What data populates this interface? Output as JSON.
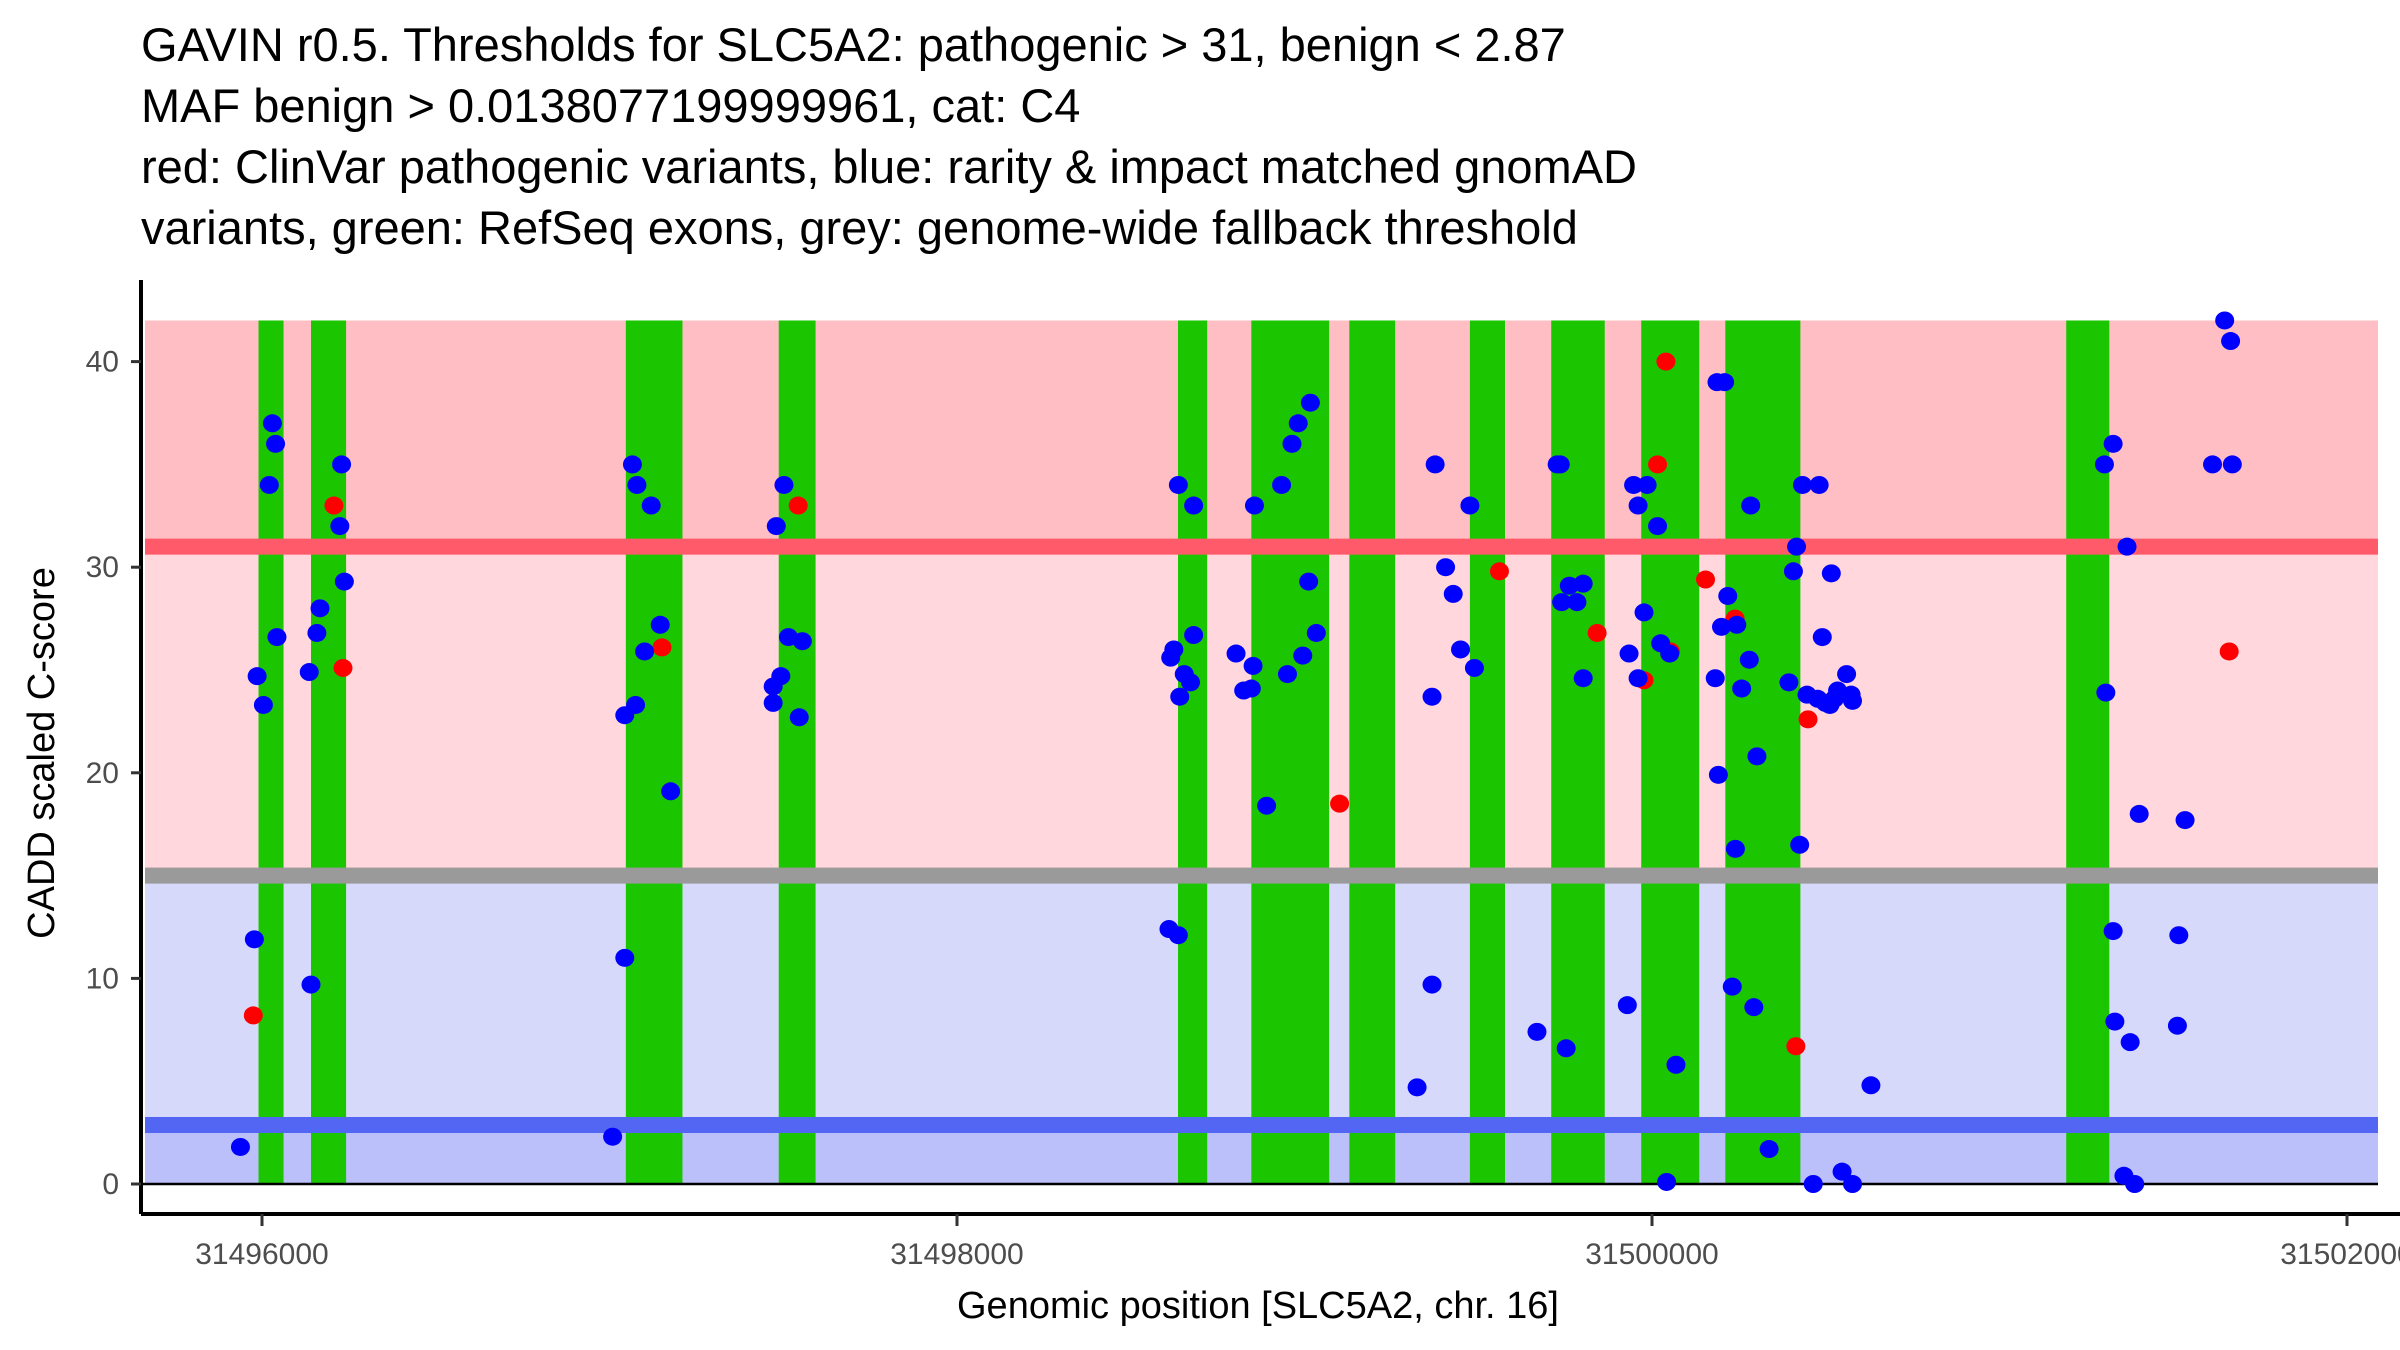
{
  "title_lines": [
    "GAVIN r0.5. Thresholds for SLC5A2: pathogenic > 31, benign < 2.87",
    "MAF benign > 0.0138077199999961, cat: C4",
    "red: ClinVar pathogenic variants, blue: rarity & impact matched gnomAD",
    "variants, green: RefSeq exons, grey: genome-wide fallback threshold"
  ],
  "chart_data": {
    "type": "scatter",
    "title": "GAVIN r0.5. Thresholds for SLC5A2: pathogenic > 31, benign < 2.87 / MAF benign > 0.0138077199999961, cat: C4",
    "xlabel": "Genomic position [SLC5A2, chr. 16]",
    "ylabel": "CADD scaled C-score",
    "xlim": [
      31495720,
      31502000
    ],
    "ylim": [
      -2,
      44
    ],
    "x_ticks": [
      31496000,
      31498000,
      31500000,
      31502000
    ],
    "x_tick_labels": [
      "31496000",
      "31498000",
      "31500000",
      "31502000"
    ],
    "y_ticks": [
      0,
      10,
      20,
      30,
      40
    ],
    "y_tick_labels": [
      "0",
      "10",
      "20",
      "30",
      "40"
    ],
    "grid": false,
    "thresholds": {
      "pathogenic": 31,
      "benign": 2.87,
      "genome_wide_fallback": 15
    },
    "bands": [
      {
        "name": "pathogenic-zone",
        "from": 31,
        "to": 42,
        "color": "#ffbec3"
      },
      {
        "name": "vus-upper-zone",
        "from": 15,
        "to": 31,
        "color": "#ffd7dc"
      },
      {
        "name": "vus-lower-zone",
        "from": 2.87,
        "to": 15,
        "color": "#d7d9fb"
      },
      {
        "name": "benign-zone",
        "from": 0,
        "to": 2.87,
        "color": "#bbbffa"
      }
    ],
    "lines": [
      {
        "name": "pathogenic-threshold",
        "y": 31,
        "color": "#ff5a69"
      },
      {
        "name": "fallback-threshold",
        "y": 15,
        "color": "#9a9a9a"
      },
      {
        "name": "benign-threshold",
        "y": 2.87,
        "color": "#5266f3"
      }
    ],
    "exons": [
      [
        31495990,
        31496062
      ],
      [
        31496141,
        31496242
      ],
      [
        31497047,
        31497210
      ],
      [
        31497487,
        31497593
      ],
      [
        31498636,
        31498720
      ],
      [
        31498847,
        31499071
      ],
      [
        31499129,
        31499261
      ],
      [
        31499476,
        31499577
      ],
      [
        31499710,
        31499864
      ],
      [
        31499969,
        31500136
      ],
      [
        31500211,
        31500427
      ],
      [
        31501192,
        31501316
      ]
    ],
    "colors": {
      "clinvar": "#ff0000",
      "gnomad": "#0000ff",
      "exon": "#1bc600"
    },
    "series": [
      {
        "name": "ClinVar pathogenic variants",
        "color": "#ff0000",
        "points": [
          [
            31495975,
            8.2
          ],
          [
            31496207,
            33.0
          ],
          [
            31496233,
            25.1
          ],
          [
            31497151,
            26.1
          ],
          [
            31497543,
            33.0
          ],
          [
            31499101,
            18.5
          ],
          [
            31499561,
            29.8
          ],
          [
            31499842,
            26.8
          ],
          [
            31499977,
            24.5
          ],
          [
            31500016,
            35.0
          ],
          [
            31500040,
            40.0
          ],
          [
            31500053,
            25.9
          ],
          [
            31500154,
            29.4
          ],
          [
            31500239,
            27.5
          ],
          [
            31500414,
            6.7
          ],
          [
            31500449,
            22.6
          ],
          [
            31501661,
            25.9
          ]
        ]
      },
      {
        "name": "rarity & impact matched gnomAD variants",
        "color": "#0000ff",
        "points": [
          [
            31495938,
            1.8
          ],
          [
            31495978,
            11.9
          ],
          [
            31495986,
            24.7
          ],
          [
            31496004,
            23.3
          ],
          [
            31496021,
            34.0
          ],
          [
            31496030,
            37.0
          ],
          [
            31496039,
            36.0
          ],
          [
            31496043,
            26.6
          ],
          [
            31496136,
            24.9
          ],
          [
            31496141,
            9.7
          ],
          [
            31496158,
            26.8
          ],
          [
            31496167,
            28.0
          ],
          [
            31496224,
            32.0
          ],
          [
            31496229,
            35.0
          ],
          [
            31496237,
            29.3
          ],
          [
            31497009,
            2.3
          ],
          [
            31497044,
            11.0
          ],
          [
            31497044,
            22.8
          ],
          [
            31497066,
            35.0
          ],
          [
            31497075,
            23.3
          ],
          [
            31497079,
            34.0
          ],
          [
            31497101,
            25.9
          ],
          [
            31497120,
            33.0
          ],
          [
            31497146,
            27.2
          ],
          [
            31497176,
            19.1
          ],
          [
            31497471,
            24.2
          ],
          [
            31497471,
            23.4
          ],
          [
            31497480,
            32.0
          ],
          [
            31497493,
            24.7
          ],
          [
            31497502,
            34.0
          ],
          [
            31497515,
            26.6
          ],
          [
            31497546,
            22.7
          ],
          [
            31497555,
            26.4
          ],
          [
            31498610,
            12.4
          ],
          [
            31498615,
            25.6
          ],
          [
            31498624,
            26.0
          ],
          [
            31498637,
            12.1
          ],
          [
            31498637,
            34.0
          ],
          [
            31498641,
            23.7
          ],
          [
            31498654,
            24.8
          ],
          [
            31498672,
            24.4
          ],
          [
            31498681,
            26.7
          ],
          [
            31498681,
            33.0
          ],
          [
            31498803,
            25.8
          ],
          [
            31498825,
            24.0
          ],
          [
            31498847,
            24.1
          ],
          [
            31498852,
            25.2
          ],
          [
            31498856,
            33.0
          ],
          [
            31498891,
            18.4
          ],
          [
            31498934,
            34.0
          ],
          [
            31498951,
            24.8
          ],
          [
            31498964,
            36.0
          ],
          [
            31498982,
            37.0
          ],
          [
            31498995,
            25.7
          ],
          [
            31499012,
            29.3
          ],
          [
            31499017,
            38.0
          ],
          [
            31499034,
            26.8
          ],
          [
            31499324,
            4.7
          ],
          [
            31499367,
            23.7
          ],
          [
            31499367,
            9.7
          ],
          [
            31499376,
            35.0
          ],
          [
            31499406,
            30.0
          ],
          [
            31499428,
            28.7
          ],
          [
            31499449,
            26.0
          ],
          [
            31499476,
            33.0
          ],
          [
            31499489,
            25.1
          ],
          [
            31499669,
            7.4
          ],
          [
            31499727,
            35.0
          ],
          [
            31499736,
            35.0
          ],
          [
            31499740,
            28.3
          ],
          [
            31499753,
            6.6
          ],
          [
            31499762,
            29.1
          ],
          [
            31499784,
            28.3
          ],
          [
            31499802,
            29.2
          ],
          [
            31499802,
            24.6
          ],
          [
            31499929,
            8.7
          ],
          [
            31499934,
            25.8
          ],
          [
            31499947,
            34.0
          ],
          [
            31499960,
            24.6
          ],
          [
            31499960,
            33.0
          ],
          [
            31499977,
            27.8
          ],
          [
            31499986,
            34.0
          ],
          [
            31500016,
            32.0
          ],
          [
            31500025,
            26.3
          ],
          [
            31500042,
            0.1
          ],
          [
            31500051,
            25.8
          ],
          [
            31500069,
            5.8
          ],
          [
            31500182,
            24.6
          ],
          [
            31500187,
            39.0
          ],
          [
            31500191,
            19.9
          ],
          [
            31500200,
            27.1
          ],
          [
            31500209,
            39.0
          ],
          [
            31500218,
            28.6
          ],
          [
            31500231,
            9.6
          ],
          [
            31500240,
            16.3
          ],
          [
            31500244,
            27.2
          ],
          [
            31500258,
            24.1
          ],
          [
            31500280,
            25.5
          ],
          [
            31500284,
            33.0
          ],
          [
            31500293,
            8.6
          ],
          [
            31500302,
            20.8
          ],
          [
            31500337,
            1.7
          ],
          [
            31500394,
            24.4
          ],
          [
            31500407,
            29.8
          ],
          [
            31500416,
            31.0
          ],
          [
            31500425,
            16.5
          ],
          [
            31500433,
            34.0
          ],
          [
            31500446,
            23.8
          ],
          [
            31500464,
            0.0
          ],
          [
            31500477,
            23.6
          ],
          [
            31500481,
            34.0
          ],
          [
            31500490,
            26.6
          ],
          [
            31500499,
            23.4
          ],
          [
            31500512,
            23.3
          ],
          [
            31500516,
            29.7
          ],
          [
            31500525,
            23.6
          ],
          [
            31500534,
            24.0
          ],
          [
            31500547,
            0.6
          ],
          [
            31500560,
            24.8
          ],
          [
            31500573,
            23.8
          ],
          [
            31500577,
            0.0
          ],
          [
            31500577,
            23.5
          ],
          [
            31500630,
            4.8
          ],
          [
            31501302,
            35.0
          ],
          [
            31501306,
            23.9
          ],
          [
            31501327,
            12.3
          ],
          [
            31501327,
            36.0
          ],
          [
            31501332,
            7.9
          ],
          [
            31501358,
            0.4
          ],
          [
            31501367,
            31.0
          ],
          [
            31501376,
            6.9
          ],
          [
            31501389,
            0.0
          ],
          [
            31501402,
            18.0
          ],
          [
            31501512,
            7.7
          ],
          [
            31501516,
            12.1
          ],
          [
            31501534,
            17.7
          ],
          [
            31501613,
            35.0
          ],
          [
            31501648,
            42.0
          ],
          [
            31501665,
            41.0
          ],
          [
            31501670,
            35.0
          ]
        ]
      }
    ]
  }
}
